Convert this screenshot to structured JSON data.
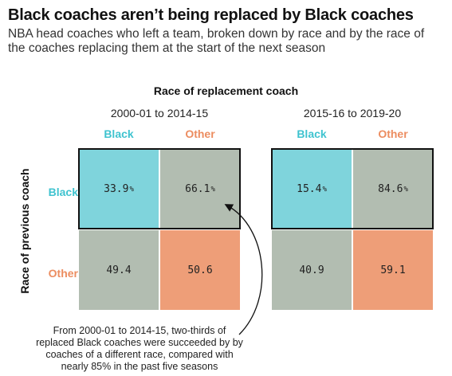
{
  "title": "Black coaches aren’t being replaced by Black coaches",
  "subtitle": "NBA head coaches who left a team, broken down by race and by the race of the coaches replacing them at the start of the next season",
  "annotation": "From 2000-01 to 2014-15, two-thirds of replaced Black coaches were succeeded by by coaches of a different race, compared with nearly 85% in the past five seasons",
  "colors": {
    "black": "#7fd4dc",
    "other": "#ee9e78",
    "neutral": "#b2bdb1",
    "black_label": "#3fc3cf",
    "other_label": "#ec8d60"
  },
  "chart_data": {
    "type": "heatmap",
    "title": "Black coaches aren’t being replaced by Black coaches",
    "subtitle": "NBA head coaches who left a team, broken down by race and by the race of the coaches replacing them at the start of the next season",
    "xlabel": "Race of replacement coach",
    "ylabel": "Race of previous coach",
    "columns": [
      "Black",
      "Other"
    ],
    "rows": [
      "Black",
      "Other"
    ],
    "panels": [
      {
        "period": "2000-01 to 2014-15",
        "values": [
          [
            "33.9",
            "66.1"
          ],
          [
            "49.4",
            "50.6"
          ]
        ]
      },
      {
        "period": "2015-16 to 2019-20",
        "values": [
          [
            "15.4",
            "84.6"
          ],
          [
            "40.9",
            "59.1"
          ]
        ]
      }
    ],
    "unit_symbol": "%"
  }
}
